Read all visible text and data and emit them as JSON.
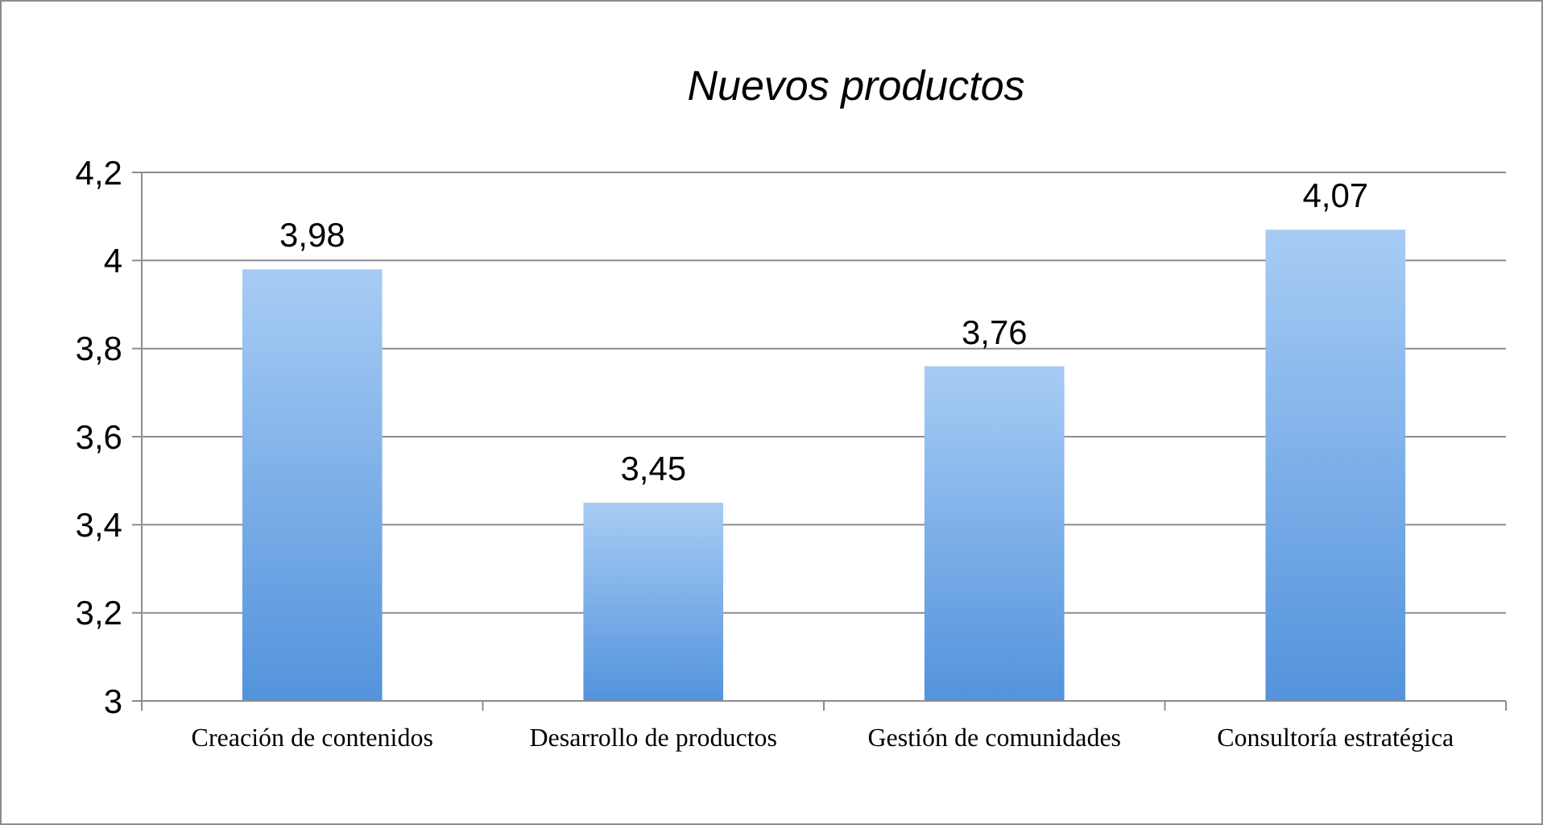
{
  "chart_data": {
    "type": "bar",
    "title": "Nuevos productos",
    "categories": [
      "Creación de contenidos",
      "Desarrollo de productos",
      "Gestión de comunidades",
      "Consultoría estratégica"
    ],
    "values": [
      3.98,
      3.45,
      3.76,
      4.07
    ],
    "color": "#78b0ee",
    "ylim": [
      3,
      4.2
    ],
    "yticks": [
      {
        "value": 3,
        "label": "3"
      },
      {
        "value": 3.2,
        "label": "3,2"
      },
      {
        "value": 3.4,
        "label": "3,4"
      },
      {
        "value": 3.6,
        "label": "3,6"
      },
      {
        "value": 3.8,
        "label": "3,8"
      },
      {
        "value": 4,
        "label": "4"
      },
      {
        "value": 4.2,
        "label": "4,2"
      }
    ],
    "value_labels": [
      "3,98",
      "3,45",
      "3,76",
      "4,07"
    ],
    "grid": "y"
  }
}
